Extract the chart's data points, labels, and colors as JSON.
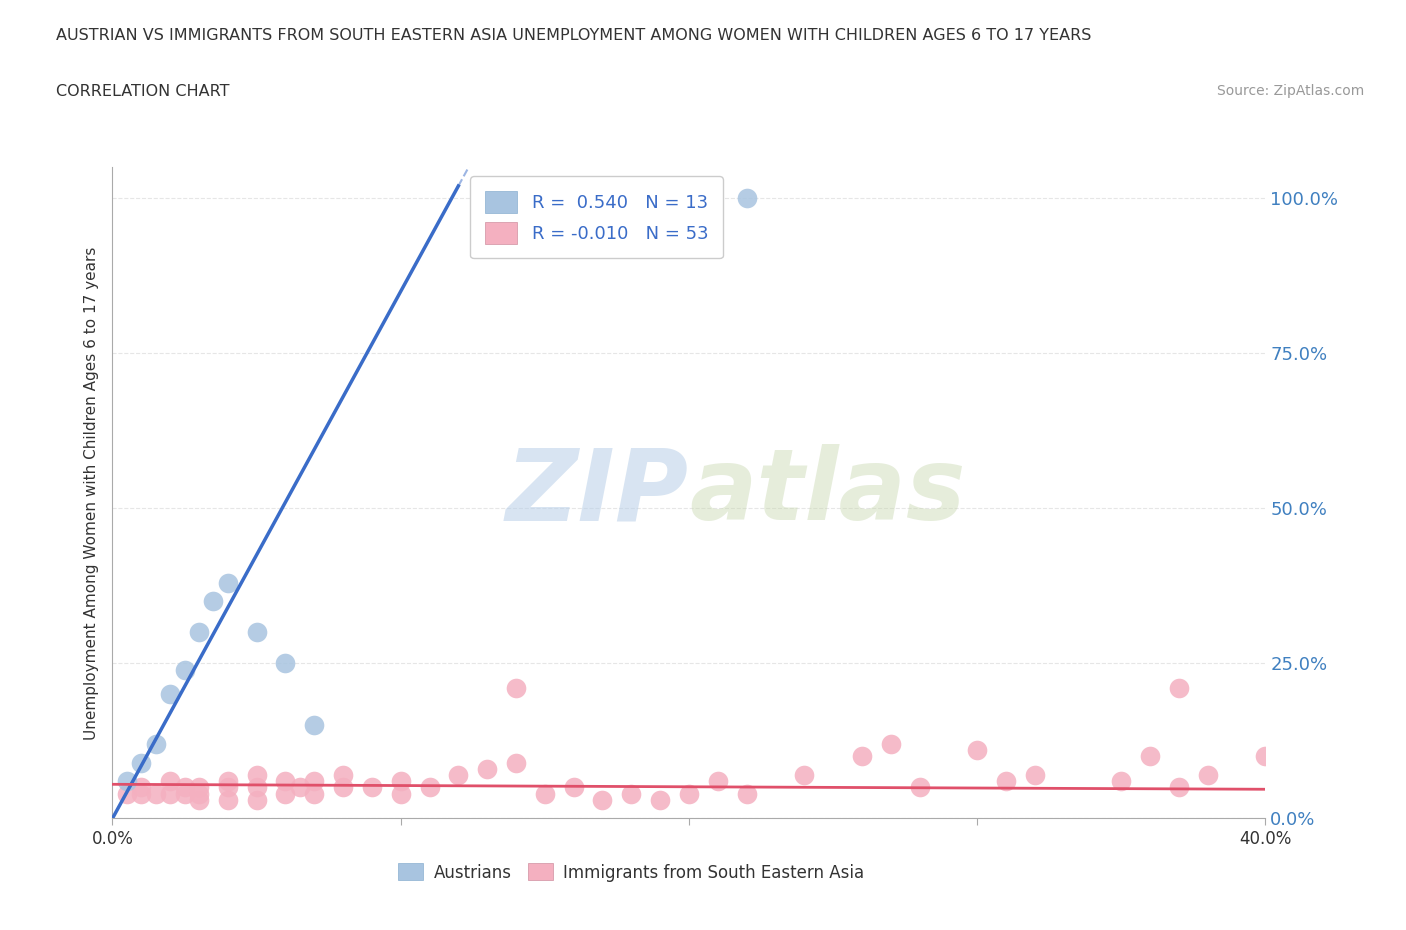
{
  "title_line1": "AUSTRIAN VS IMMIGRANTS FROM SOUTH EASTERN ASIA UNEMPLOYMENT AMONG WOMEN WITH CHILDREN AGES 6 TO 17 YEARS",
  "title_line2": "CORRELATION CHART",
  "source": "Source: ZipAtlas.com",
  "ylabel": "Unemployment Among Women with Children Ages 6 to 17 years",
  "xlabel": "",
  "xlim": [
    0.0,
    0.4
  ],
  "ylim": [
    0.0,
    1.05
  ],
  "ytick_vals": [
    0.0,
    0.25,
    0.5,
    0.75,
    1.0
  ],
  "ytick_labels": [
    "0.0%",
    "25.0%",
    "50.0%",
    "75.0%",
    "100.0%"
  ],
  "xtick_vals": [
    0.0,
    0.1,
    0.2,
    0.3,
    0.4
  ],
  "xtick_labels": [
    "0.0%",
    "",
    "",
    "",
    "40.0%"
  ],
  "background_color": "#ffffff",
  "grid_color": "#e0e0e0",
  "watermark_zip": "ZIP",
  "watermark_atlas": "atlas",
  "austrians_color": "#a8c4e0",
  "immigrants_color": "#f4b0c0",
  "trendline_austrians_color": "#3a6cc8",
  "trendline_immigrants_color": "#e0506a",
  "ytick_color": "#4080c0",
  "xtick_color": "#333333",
  "R_austrians": 0.54,
  "N_austrians": 13,
  "R_immigrants": -0.01,
  "N_immigrants": 53,
  "aus_x": [
    0.005,
    0.01,
    0.015,
    0.02,
    0.025,
    0.03,
    0.035,
    0.04,
    0.05,
    0.06,
    0.07,
    0.13,
    0.22
  ],
  "aus_y": [
    0.06,
    0.09,
    0.12,
    0.2,
    0.24,
    0.3,
    0.35,
    0.38,
    0.3,
    0.25,
    0.15,
    1.0,
    1.0
  ],
  "imm_x": [
    0.005,
    0.01,
    0.01,
    0.015,
    0.02,
    0.02,
    0.025,
    0.025,
    0.03,
    0.03,
    0.03,
    0.04,
    0.04,
    0.04,
    0.05,
    0.05,
    0.05,
    0.06,
    0.06,
    0.065,
    0.07,
    0.07,
    0.08,
    0.08,
    0.09,
    0.1,
    0.1,
    0.11,
    0.12,
    0.13,
    0.14,
    0.15,
    0.16,
    0.17,
    0.18,
    0.19,
    0.2,
    0.21,
    0.22,
    0.24,
    0.26,
    0.27,
    0.28,
    0.3,
    0.31,
    0.32,
    0.35,
    0.36,
    0.37,
    0.38,
    0.4,
    0.14,
    0.37
  ],
  "imm_y": [
    0.04,
    0.04,
    0.05,
    0.04,
    0.04,
    0.06,
    0.04,
    0.05,
    0.03,
    0.04,
    0.05,
    0.03,
    0.05,
    0.06,
    0.03,
    0.05,
    0.07,
    0.04,
    0.06,
    0.05,
    0.04,
    0.06,
    0.05,
    0.07,
    0.05,
    0.04,
    0.06,
    0.05,
    0.07,
    0.08,
    0.09,
    0.04,
    0.05,
    0.03,
    0.04,
    0.03,
    0.04,
    0.06,
    0.04,
    0.07,
    0.1,
    0.12,
    0.05,
    0.11,
    0.06,
    0.07,
    0.06,
    0.1,
    0.05,
    0.07,
    0.1,
    0.21,
    0.21
  ],
  "trendline_aus_x0": 0.0,
  "trendline_aus_x1": 0.4,
  "trendline_imm_x0": 0.0,
  "trendline_imm_x1": 0.4
}
